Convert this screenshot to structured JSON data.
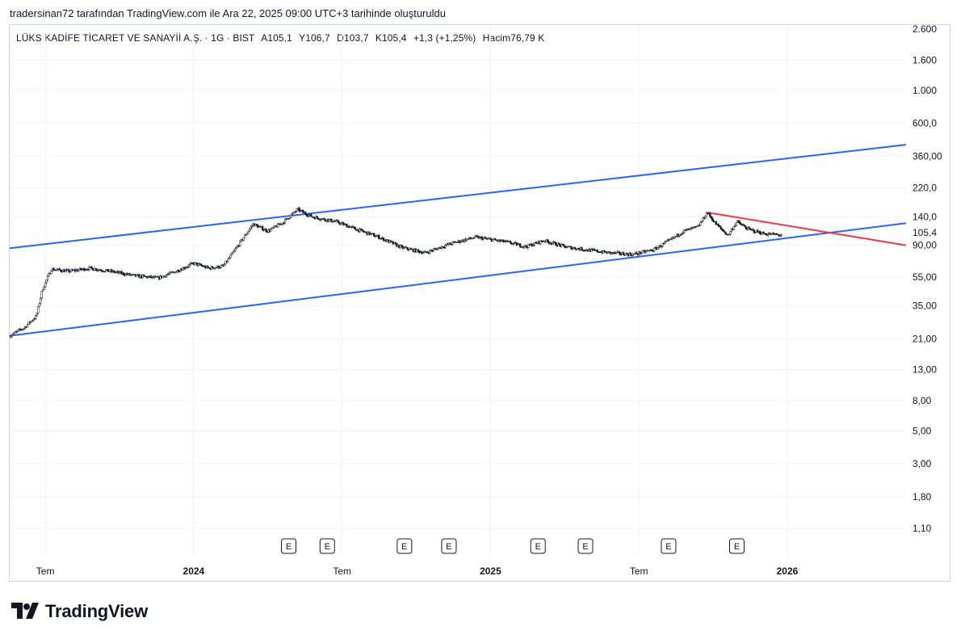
{
  "attribution": "tradersinan72 tarafından TradingView.com ile Ara 22, 2025 09:00 UTC+3 tarihinde oluşturuldu",
  "header": {
    "symbol": "LÜKS KADİFE TİCARET VE SANAYİİ A.Ş. · 1G · BIST",
    "open": "A105,1",
    "high": "Y106,7",
    "low": "D103,7",
    "close": "K105,4",
    "change": "+1,3 (+1,25%)",
    "volume": "Hacim76,79 K"
  },
  "brand": {
    "name": "TradingView"
  },
  "colors": {
    "channel": "#2962ff",
    "trendline": "#f23645",
    "candle": "#131722",
    "grid": "#f0f3fa"
  },
  "chart_data": {
    "type": "line",
    "scale": "log",
    "title": "LÜKS KADİFE TİCARET VE SANAYİİ A.Ş. · 1G · BIST",
    "ylim": [
      0.8,
      3000
    ],
    "y_ticks": [
      {
        "value": 2600,
        "label": "2.600"
      },
      {
        "value": 1600,
        "label": "1.600"
      },
      {
        "value": 1000,
        "label": "1.000"
      },
      {
        "value": 600,
        "label": "600,0"
      },
      {
        "value": 360,
        "label": "360,00"
      },
      {
        "value": 220,
        "label": "220,0"
      },
      {
        "value": 140,
        "label": "140,0"
      },
      {
        "value": 90,
        "label": "90,00"
      },
      {
        "value": 55,
        "label": "55,00"
      },
      {
        "value": 35,
        "label": "35,00"
      },
      {
        "value": 21,
        "label": "21,00"
      },
      {
        "value": 13,
        "label": "13,00"
      },
      {
        "value": 8,
        "label": "8,00"
      },
      {
        "value": 5,
        "label": "5,00"
      },
      {
        "value": 3,
        "label": "3,00"
      },
      {
        "value": 1.8,
        "label": "1,80"
      },
      {
        "value": 1.1,
        "label": "1,10"
      }
    ],
    "last_price": {
      "value": 105.4,
      "label": "105,4"
    },
    "x_range": [
      2023.38,
      2026.4
    ],
    "x_ticks": [
      {
        "t": 2023.5,
        "label": "Tem",
        "bold": false
      },
      {
        "t": 2024.0,
        "label": "2024",
        "bold": true
      },
      {
        "t": 2024.5,
        "label": "Tem",
        "bold": false
      },
      {
        "t": 2025.0,
        "label": "2025",
        "bold": true
      },
      {
        "t": 2025.5,
        "label": "Tem",
        "bold": false
      },
      {
        "t": 2026.0,
        "label": "2026",
        "bold": true
      }
    ],
    "earnings_label": "E",
    "earnings": [
      2024.32,
      2024.45,
      2024.71,
      2024.86,
      2025.16,
      2025.32,
      2025.6,
      2025.83
    ],
    "series": [
      {
        "name": "Fiyat",
        "points": [
          [
            2023.38,
            22
          ],
          [
            2023.43,
            25
          ],
          [
            2023.47,
            30
          ],
          [
            2023.49,
            45
          ],
          [
            2023.52,
            62
          ],
          [
            2023.58,
            60
          ],
          [
            2023.65,
            63
          ],
          [
            2023.72,
            60
          ],
          [
            2023.8,
            56
          ],
          [
            2023.88,
            54
          ],
          [
            2023.94,
            60
          ],
          [
            2024.0,
            68
          ],
          [
            2024.05,
            63
          ],
          [
            2024.1,
            65
          ],
          [
            2024.15,
            90
          ],
          [
            2024.2,
            125
          ],
          [
            2024.25,
            112
          ],
          [
            2024.3,
            128
          ],
          [
            2024.35,
            157
          ],
          [
            2024.4,
            140
          ],
          [
            2024.48,
            130
          ],
          [
            2024.55,
            115
          ],
          [
            2024.62,
            103
          ],
          [
            2024.7,
            87
          ],
          [
            2024.78,
            80
          ],
          [
            2024.87,
            93
          ],
          [
            2024.95,
            102
          ],
          [
            2025.05,
            95
          ],
          [
            2025.12,
            88
          ],
          [
            2025.18,
            97
          ],
          [
            2025.25,
            88
          ],
          [
            2025.32,
            84
          ],
          [
            2025.4,
            80
          ],
          [
            2025.48,
            78
          ],
          [
            2025.55,
            84
          ],
          [
            2025.6,
            96
          ],
          [
            2025.65,
            112
          ],
          [
            2025.7,
            120
          ],
          [
            2025.73,
            150
          ],
          [
            2025.76,
            125
          ],
          [
            2025.8,
            105
          ],
          [
            2025.83,
            130
          ],
          [
            2025.87,
            115
          ],
          [
            2025.92,
            108
          ],
          [
            2025.98,
            105.4
          ]
        ]
      }
    ],
    "drawings": [
      {
        "name": "channel-upper",
        "color": "#2962ff",
        "points": [
          [
            2023.38,
            86
          ],
          [
            2026.4,
            430
          ]
        ]
      },
      {
        "name": "channel-lower",
        "color": "#2962ff",
        "points": [
          [
            2023.38,
            22
          ],
          [
            2026.4,
            127
          ]
        ]
      },
      {
        "name": "red-trendline",
        "color": "#f23645",
        "points": [
          [
            2025.73,
            150
          ],
          [
            2026.4,
            90
          ]
        ]
      }
    ]
  }
}
